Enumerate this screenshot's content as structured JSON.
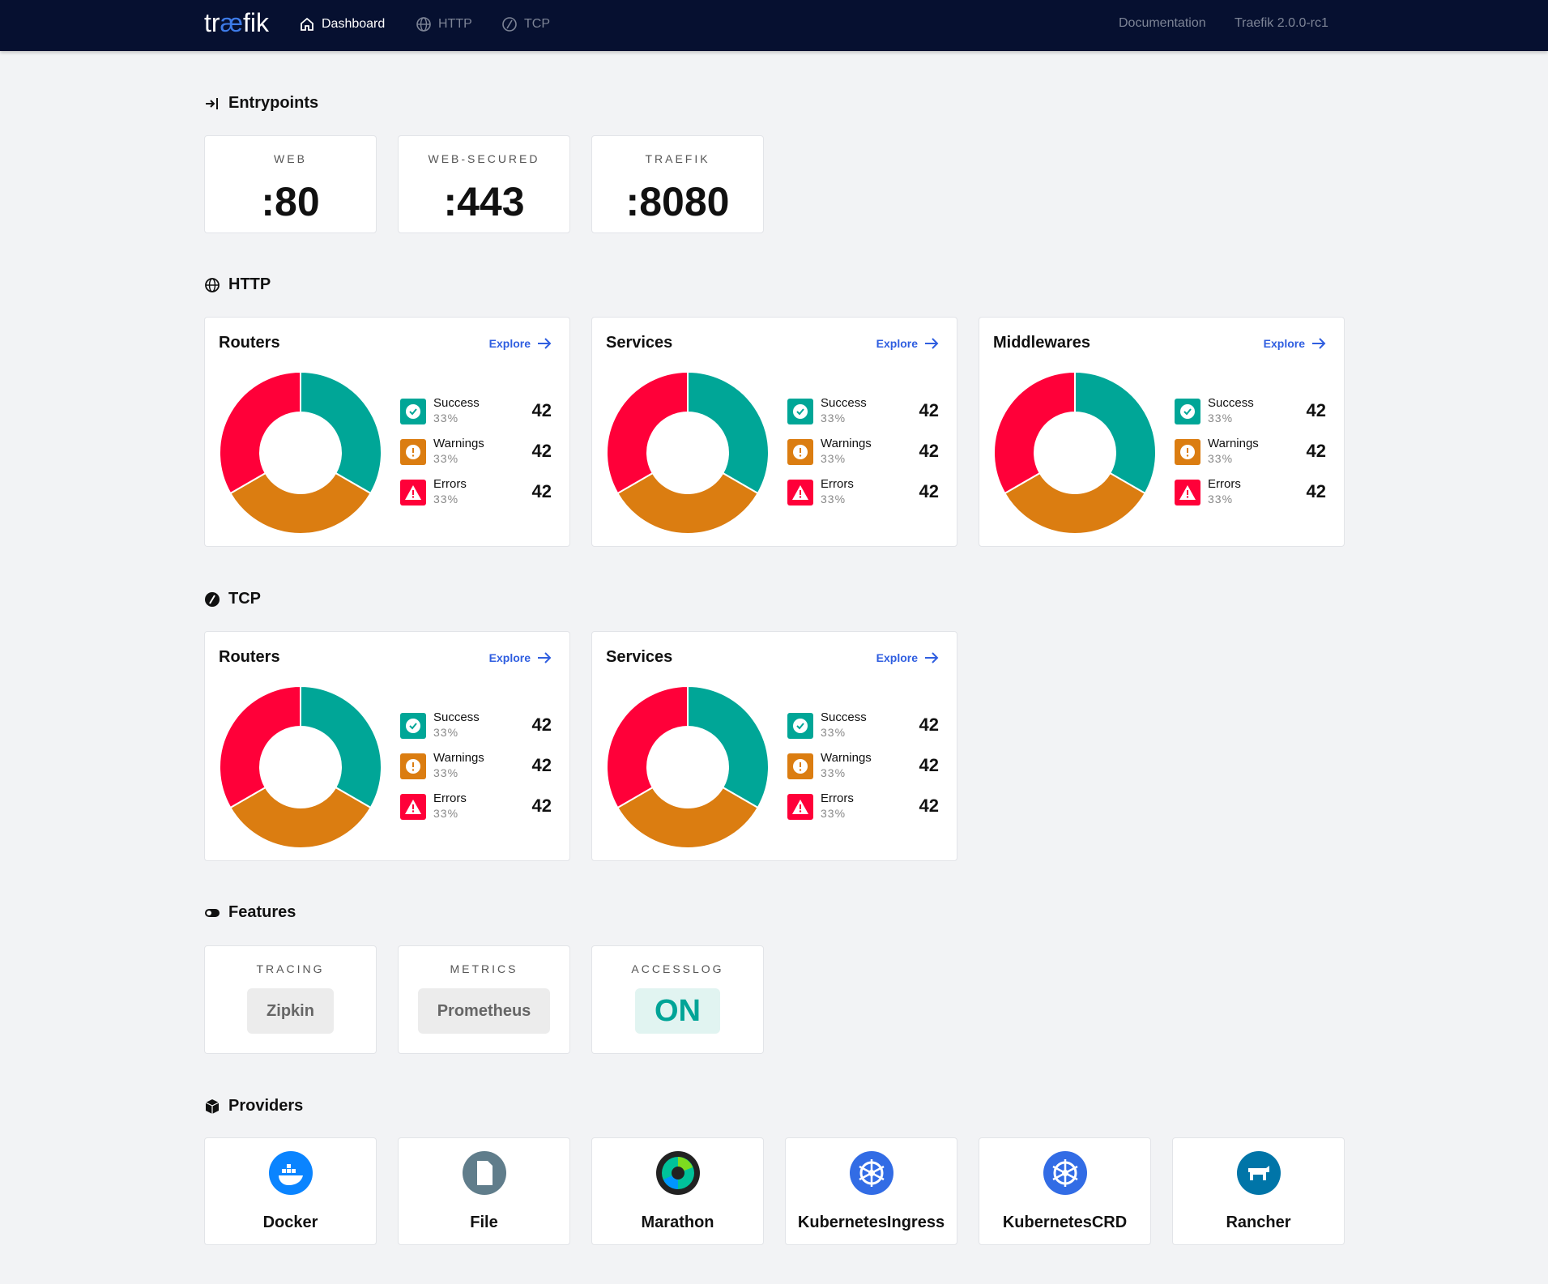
{
  "nav": {
    "logo": "træfik",
    "items": [
      {
        "label": "Dashboard",
        "icon": "home-icon",
        "active": true
      },
      {
        "label": "HTTP",
        "icon": "globe-icon"
      },
      {
        "label": "TCP",
        "icon": "tcp-icon"
      }
    ],
    "documentation": "Documentation",
    "version": "Traefik 2.0.0-rc1"
  },
  "entrypoints": {
    "title": "Entrypoints",
    "items": [
      {
        "name": "WEB",
        "port": ":80"
      },
      {
        "name": "WEB-SECURED",
        "port": ":443"
      },
      {
        "name": "TRAEFIK",
        "port": ":8080"
      }
    ]
  },
  "colors": {
    "success": "#00a697",
    "warnings": "#db7d11",
    "errors": "#ff0039",
    "link": "#2f5ee0",
    "navbar": "#061030"
  },
  "legend": {
    "success": "Success",
    "warnings": "Warnings",
    "errors": "Errors",
    "explore": "Explore"
  },
  "http": {
    "title": "HTTP",
    "panels": [
      {
        "title": "Routers",
        "success": {
          "count": "42",
          "percent": "33%"
        },
        "warnings": {
          "count": "42",
          "percent": "33%"
        },
        "errors": {
          "count": "42",
          "percent": "33%"
        }
      },
      {
        "title": "Services",
        "success": {
          "count": "42",
          "percent": "33%"
        },
        "warnings": {
          "count": "42",
          "percent": "33%"
        },
        "errors": {
          "count": "42",
          "percent": "33%"
        }
      },
      {
        "title": "Middlewares",
        "success": {
          "count": "42",
          "percent": "33%"
        },
        "warnings": {
          "count": "42",
          "percent": "33%"
        },
        "errors": {
          "count": "42",
          "percent": "33%"
        }
      }
    ]
  },
  "tcp": {
    "title": "TCP",
    "panels": [
      {
        "title": "Routers",
        "success": {
          "count": "42",
          "percent": "33%"
        },
        "warnings": {
          "count": "42",
          "percent": "33%"
        },
        "errors": {
          "count": "42",
          "percent": "33%"
        }
      },
      {
        "title": "Services",
        "success": {
          "count": "42",
          "percent": "33%"
        },
        "warnings": {
          "count": "42",
          "percent": "33%"
        },
        "errors": {
          "count": "42",
          "percent": "33%"
        }
      }
    ]
  },
  "features": {
    "title": "Features",
    "items": [
      {
        "name": "TRACING",
        "value": "Zipkin"
      },
      {
        "name": "METRICS",
        "value": "Prometheus"
      },
      {
        "name": "ACCESSLOG",
        "value": "ON",
        "on": true
      }
    ]
  },
  "providers": {
    "title": "Providers",
    "items": [
      {
        "name": "Docker",
        "icon": "docker-icon",
        "color": "#0a84ff"
      },
      {
        "name": "File",
        "icon": "file-icon",
        "color": "#607d8b"
      },
      {
        "name": "Marathon",
        "icon": "marathon-icon",
        "color": "#222222"
      },
      {
        "name": "KubernetesIngress",
        "icon": "kubernetes-icon",
        "color": "#326ce5"
      },
      {
        "name": "KubernetesCRD",
        "icon": "kubernetes-icon",
        "color": "#326ce5"
      },
      {
        "name": "Rancher",
        "icon": "rancher-icon",
        "color": "#0075a8"
      }
    ]
  }
}
